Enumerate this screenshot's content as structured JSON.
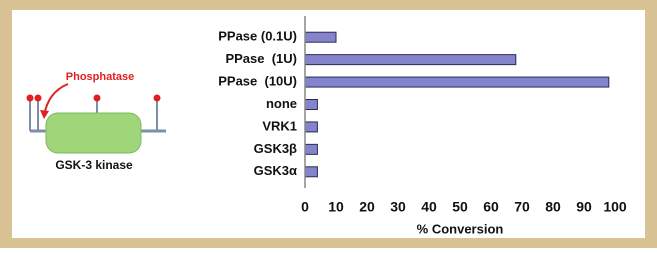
{
  "diagram": {
    "enzyme": "Phosphatase",
    "protein": "GSK-3 kinase"
  },
  "chart_data": {
    "type": "bar",
    "orientation": "horizontal",
    "categories": [
      "PPase (0.1U)",
      "PPase  (1U)",
      "PPase  (10U)",
      "none",
      "VRK1",
      "GSK3β",
      "GSK3α"
    ],
    "values": [
      10,
      68,
      98,
      4,
      4,
      4,
      4
    ],
    "color": "#8484cc",
    "xlabel": "% Conversion",
    "xlim": [
      0,
      100
    ],
    "xticks": [
      0,
      10,
      20,
      30,
      40,
      50,
      60,
      70,
      80,
      90,
      100
    ],
    "grid": false
  }
}
